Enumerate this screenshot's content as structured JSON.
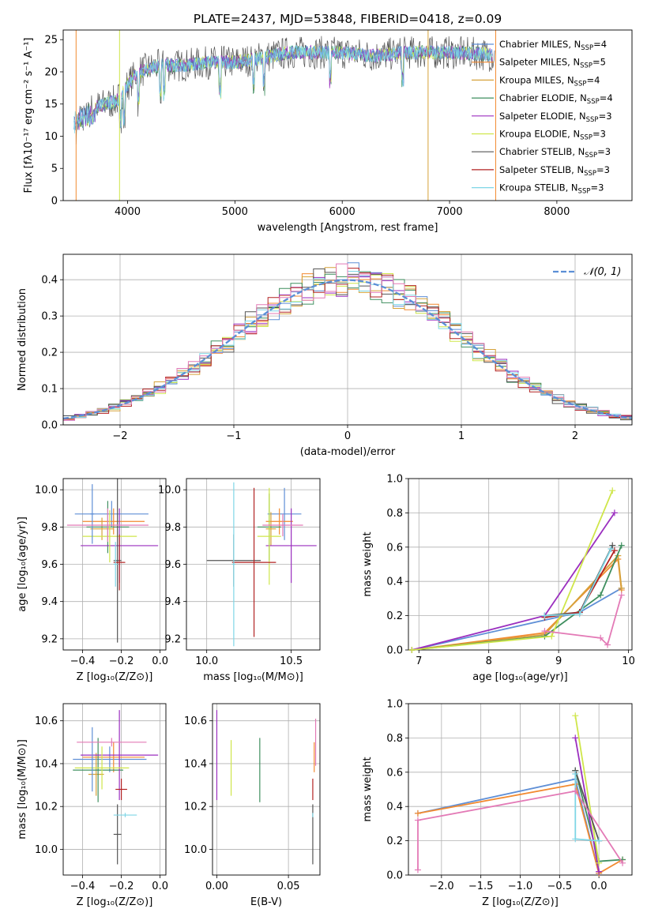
{
  "figure": {
    "title": "PLATE=2437, MJD=53848, FIBERID=0418, z=0.09"
  },
  "colors": {
    "Chabrier MILES": "#5f8fd6",
    "Salpeter MILES": "#f28a30",
    "Kroupa MILES": "#d6a23a",
    "Chabrier ELODIE": "#3f8f5f",
    "Salpeter ELODIE": "#9b2fbf",
    "Kroupa ELODIE": "#cfe64a",
    "Chabrier STELIB": "#555555",
    "Salpeter STELIB": "#b22222",
    "Kroupa STELIB": "#7fd6e6",
    "Pink": "#e37ab6",
    "Gaussian": "#5b8fd6",
    "Grid": "#b0b0b0"
  },
  "chart_data": [
    {
      "id": "spectrum",
      "type": "line",
      "title": "PLATE=2437, MJD=53848, FIBERID=0418, z=0.09",
      "xlabel": "wavelength [Angstrom, rest frame]",
      "ylabel": "Flux [fλ10⁻¹⁷ erg cm⁻² s⁻¹ A⁻¹]",
      "xlim": [
        3400,
        8700
      ],
      "ylim": [
        0,
        26.5
      ],
      "xticks": [
        4000,
        5000,
        6000,
        7000,
        8000
      ],
      "yticks": [
        0,
        5,
        10,
        15,
        20,
        25
      ],
      "grid": false,
      "legend_position": "right",
      "legend": [
        "Chabrier MILES, N_SSP=4",
        "Salpeter MILES, N_SSP=5",
        "Kroupa MILES, N_SSP=4",
        "Chabrier ELODIE, N_SSP=4",
        "Salpeter ELODIE, N_SSP=3",
        "Kroupa ELODIE, N_SSP=3",
        "Chabrier STELIB, N_SSP=3",
        "Salpeter STELIB, N_SSP=3",
        "Kroupa STELIB, N_SSP=3"
      ],
      "continuum": {
        "x": [
          3500,
          3600,
          3700,
          3800,
          3900,
          4000,
          4100,
          4300,
          4500,
          4800,
          5000,
          5200,
          5500,
          5800,
          6000,
          6300,
          6600,
          7000,
          7300,
          7430
        ],
        "y": [
          13,
          14,
          14.5,
          15,
          15.5,
          18,
          20,
          21,
          21,
          21.5,
          21.5,
          22,
          23,
          23,
          23,
          22.5,
          23,
          23,
          22.8,
          22.5
        ]
      }
    },
    {
      "id": "residuals",
      "type": "histogram",
      "xlabel": "(data-model)/error",
      "ylabel": "Normed distribution",
      "xlim": [
        -2.5,
        2.5
      ],
      "ylim": [
        0,
        0.47
      ],
      "xticks": [
        "−2",
        "−1",
        "0",
        "1",
        "2"
      ],
      "yticks": [
        "0.0",
        "0.1",
        "0.2",
        "0.3",
        "0.4"
      ],
      "grid": true,
      "legend": [
        "𝒩(0, 1)"
      ],
      "legend_position": "top-right",
      "bin_width": 0.1
    },
    {
      "id": "age-vs-Z",
      "type": "errorbar",
      "xlabel": "Z [log₁₀(Z/Z⊙)]",
      "ylabel": "age  [log₁₀(age/yr)]",
      "xlim": [
        -0.5,
        0.03
      ],
      "ylim": [
        9.14,
        10.06
      ],
      "xticks": [
        "−0.4",
        "−0.2",
        "0.0"
      ],
      "yticks": [
        "9.2",
        "9.4",
        "9.6",
        "9.8",
        "10.0"
      ],
      "grid": true,
      "points": [
        {
          "c": "Chabrier MILES",
          "x": -0.25,
          "xerr": 0.19,
          "y": 9.87,
          "yerr": 0.07
        },
        {
          "c": "Salpeter MILES",
          "x": -0.24,
          "xerr": 0.16,
          "y": 9.83,
          "yerr": 0.07
        },
        {
          "c": "Kroupa MILES",
          "x": -0.3,
          "xerr": 0.06,
          "y": 9.79,
          "yerr": 0.06
        },
        {
          "c": "Chabrier ELODIE",
          "x": -0.27,
          "xerr": 0.11,
          "y": 9.8,
          "yerr": 0.14
        },
        {
          "c": "Salpeter ELODIE",
          "x": -0.21,
          "xerr": 0.2,
          "y": 9.7,
          "yerr": 0.2
        },
        {
          "c": "Kroupa ELODIE",
          "x": -0.26,
          "xerr": 0.14,
          "y": 9.75,
          "yerr": 0.14
        },
        {
          "c": "Chabrier STELIB",
          "x": -0.22,
          "xerr": 0.02,
          "y": 9.62,
          "yerr": 0.44
        },
        {
          "c": "Salpeter STELIB",
          "x": -0.21,
          "xerr": 0.03,
          "y": 9.61,
          "yerr": 0.15
        },
        {
          "c": "Kroupa STELIB",
          "x": -0.23,
          "xerr": 0.01,
          "y": 9.6,
          "yerr": 0.12
        },
        {
          "c": "Chabrier MILES",
          "x": -0.35,
          "xerr": 0.01,
          "y": 9.87,
          "yerr": 0.16
        },
        {
          "c": "Pink",
          "x": -0.27,
          "xerr": 0.21,
          "y": 9.81,
          "yerr": 0.09
        }
      ]
    },
    {
      "id": "age-vs-mass",
      "type": "errorbar",
      "xlabel": "mass [log₁₀(M/M⊙)]",
      "ylabel": "",
      "xlim": [
        9.88,
        10.67
      ],
      "ylim": [
        9.14,
        10.06
      ],
      "xticks": [
        "10.0",
        "10.5"
      ],
      "yticks": [
        "9.2",
        "9.4",
        "9.6",
        "9.8",
        "10.0"
      ],
      "grid": true,
      "points": [
        {
          "c": "Chabrier MILES",
          "x": 10.46,
          "xerr": 0.1,
          "y": 9.87,
          "yerr": 0.14
        },
        {
          "c": "Salpeter MILES",
          "x": 10.43,
          "xerr": 0.08,
          "y": 9.83,
          "yerr": 0.07
        },
        {
          "c": "Kroupa MILES",
          "x": 10.38,
          "xerr": 0.03,
          "y": 9.79,
          "yerr": 0.09
        },
        {
          "c": "Chabrier ELODIE",
          "x": 10.37,
          "xerr": 0.07,
          "y": 9.8,
          "yerr": 0.18
        },
        {
          "c": "Salpeter ELODIE",
          "x": 10.5,
          "xerr": 0.15,
          "y": 9.7,
          "yerr": 0.2
        },
        {
          "c": "Kroupa ELODIE",
          "x": 10.37,
          "xerr": 0.07,
          "y": 9.75,
          "yerr": 0.26
        },
        {
          "c": "Chabrier STELIB",
          "x": 10.16,
          "xerr": 0.16,
          "y": 9.62,
          "yerr": 0.14
        },
        {
          "c": "Salpeter STELIB",
          "x": 10.28,
          "xerr": 0.13,
          "y": 9.61,
          "yerr": 0.4
        },
        {
          "c": "Kroupa STELIB",
          "x": 10.16,
          "xerr": 0.01,
          "y": 9.6,
          "yerr": 0.44
        },
        {
          "c": "Pink",
          "x": 10.45,
          "xerr": 0.12,
          "y": 9.81,
          "yerr": 0.06
        }
      ]
    },
    {
      "id": "weight-vs-age",
      "type": "line",
      "xlabel": "age  [log₁₀(age/yr)]",
      "ylabel": "mass weight",
      "xlim": [
        6.85,
        10.05
      ],
      "ylim": [
        0,
        1
      ],
      "xticks": [
        "7",
        "8",
        "9",
        "10"
      ],
      "yticks": [
        "0.0",
        "0.2",
        "0.4",
        "0.6",
        "0.8",
        "1.0"
      ],
      "grid": true,
      "series": [
        {
          "c": "Chabrier MILES",
          "x": [
            6.9,
            9.3,
            9.9
          ],
          "y": [
            0.0,
            0.22,
            0.36
          ]
        },
        {
          "c": "Salpeter MILES",
          "x": [
            6.9,
            8.8,
            9.85,
            9.9
          ],
          "y": [
            0.0,
            0.1,
            0.53,
            0.35
          ]
        },
        {
          "c": "Kroupa MILES",
          "x": [
            6.9,
            8.8,
            9.85,
            9.9
          ],
          "y": [
            0.0,
            0.09,
            0.55,
            0.36
          ]
        },
        {
          "c": "Chabrier ELODIE",
          "x": [
            6.9,
            8.8,
            9.6,
            9.9
          ],
          "y": [
            0.0,
            0.08,
            0.32,
            0.61
          ]
        },
        {
          "c": "Salpeter ELODIE",
          "x": [
            6.9,
            8.8,
            9.8
          ],
          "y": [
            0.0,
            0.2,
            0.8
          ]
        },
        {
          "c": "Kroupa ELODIE",
          "x": [
            6.9,
            8.9,
            9.77
          ],
          "y": [
            0.0,
            0.08,
            0.93
          ]
        },
        {
          "c": "Chabrier STELIB",
          "x": [
            8.8,
            9.3,
            9.77
          ],
          "y": [
            0.2,
            0.22,
            0.61
          ]
        },
        {
          "c": "Salpeter STELIB",
          "x": [
            8.8,
            9.3,
            9.8
          ],
          "y": [
            0.19,
            0.22,
            0.58
          ]
        },
        {
          "c": "Kroupa STELIB",
          "x": [
            8.8,
            9.3,
            9.75
          ],
          "y": [
            0.2,
            0.21,
            0.59
          ]
        },
        {
          "c": "Pink",
          "x": [
            8.8,
            9.6,
            9.7,
            9.9
          ],
          "y": [
            0.11,
            0.07,
            0.03,
            0.32
          ]
        }
      ]
    },
    {
      "id": "mass-vs-Z",
      "type": "errorbar",
      "xlabel": "Z [log₁₀(Z/Z⊙)]",
      "ylabel": "mass [log₁₀(M/M⊙)]",
      "xlim": [
        -0.5,
        0.03
      ],
      "ylim": [
        9.88,
        10.68
      ],
      "xticks": [
        "−0.4",
        "−0.2",
        "0.0"
      ],
      "yticks": [
        "10.0",
        "10.2",
        "10.4",
        "10.6"
      ],
      "grid": true,
      "points": [
        {
          "c": "Chabrier MILES",
          "x": -0.26,
          "xerr": 0.19,
          "y": 10.42,
          "yerr": 0.06
        },
        {
          "c": "Salpeter MILES",
          "x": -0.24,
          "xerr": 0.16,
          "y": 10.43,
          "yerr": 0.07
        },
        {
          "c": "Kroupa MILES",
          "x": -0.33,
          "xerr": 0.04,
          "y": 10.35,
          "yerr": 0.1
        },
        {
          "c": "Chabrier ELODIE",
          "x": -0.32,
          "xerr": 0.13,
          "y": 10.37,
          "yerr": 0.15
        },
        {
          "c": "Salpeter ELODIE",
          "x": -0.21,
          "xerr": 0.2,
          "y": 10.44,
          "yerr": 0.21
        },
        {
          "c": "Kroupa ELODIE",
          "x": -0.3,
          "xerr": 0.14,
          "y": 10.38,
          "yerr": 0.1
        },
        {
          "c": "Chabrier STELIB",
          "x": -0.22,
          "xerr": 0.02,
          "y": 10.07,
          "yerr": 0.14
        },
        {
          "c": "Salpeter STELIB",
          "x": -0.2,
          "xerr": 0.03,
          "y": 10.28,
          "yerr": 0.05
        },
        {
          "c": "Kroupa STELIB",
          "x": -0.18,
          "xerr": 0.06,
          "y": 10.16,
          "yerr": 0.01
        },
        {
          "c": "Chabrier MILES",
          "x": -0.35,
          "xerr": 0.01,
          "y": 10.42,
          "yerr": 0.15
        },
        {
          "c": "Pink",
          "x": -0.25,
          "xerr": 0.18,
          "y": 10.5,
          "yerr": 0.02
        }
      ]
    },
    {
      "id": "mass-vs-EBV",
      "type": "errorbar",
      "xlabel": "E(B-V)",
      "ylabel": "",
      "xlim": [
        -0.003,
        0.072
      ],
      "ylim": [
        9.88,
        10.68
      ],
      "xticks": [
        "0.00",
        "0.05"
      ],
      "yticks": [
        "10.0",
        "10.2",
        "10.4",
        "10.6"
      ],
      "grid": true,
      "points": [
        {
          "c": "Salpeter ELODIE",
          "x": 0.0,
          "xerr": 0,
          "y": 10.44,
          "yerr": 0.21
        },
        {
          "c": "Kroupa ELODIE",
          "x": 0.01,
          "xerr": 0,
          "y": 10.38,
          "yerr": 0.13
        },
        {
          "c": "Chabrier ELODIE",
          "x": 0.03,
          "xerr": 0,
          "y": 10.37,
          "yerr": 0.15
        },
        {
          "c": "Salpeter MILES",
          "x": 0.068,
          "xerr": 0,
          "y": 10.43,
          "yerr": 0.07
        },
        {
          "c": "Pink",
          "x": 0.069,
          "xerr": 0,
          "y": 10.5,
          "yerr": 0.11
        },
        {
          "c": "Chabrier STELIB",
          "x": 0.067,
          "xerr": 0,
          "y": 10.07,
          "yerr": 0.14
        },
        {
          "c": "Salpeter STELIB",
          "x": 0.067,
          "xerr": 0,
          "y": 10.28,
          "yerr": 0.05
        },
        {
          "c": "Kroupa STELIB",
          "x": 0.067,
          "xerr": 0,
          "y": 10.16,
          "yerr": 0.01
        }
      ]
    },
    {
      "id": "weight-vs-Z",
      "type": "line",
      "xlabel": "Z [log₁₀(Z/Z⊙)]",
      "ylabel": "mass weight",
      "xlim": [
        -2.42,
        0.42
      ],
      "ylim": [
        0,
        1
      ],
      "xticks": [
        "−2.0",
        "−1.5",
        "−1.0",
        "−0.5",
        "0.0"
      ],
      "yticks": [
        "0.0",
        "0.2",
        "0.4",
        "0.6",
        "0.8",
        "1.0"
      ],
      "grid": true,
      "series": [
        {
          "c": "Chabrier MILES",
          "x": [
            -2.3,
            -0.3,
            0.0
          ],
          "y": [
            0.36,
            0.56,
            0.01
          ]
        },
        {
          "c": "Salpeter MILES",
          "x": [
            -2.3,
            -0.3,
            0.0,
            0.3
          ],
          "y": [
            0.36,
            0.53,
            0.01,
            0.09
          ]
        },
        {
          "c": "Chabrier ELODIE",
          "x": [
            -0.3,
            0.0,
            0.3
          ],
          "y": [
            0.61,
            0.08,
            0.09
          ]
        },
        {
          "c": "Salpeter ELODIE",
          "x": [
            -0.3,
            0.0
          ],
          "y": [
            0.8,
            0.02
          ]
        },
        {
          "c": "Kroupa ELODIE",
          "x": [
            -0.3,
            0.0
          ],
          "y": [
            0.93,
            0.07
          ]
        },
        {
          "c": "Chabrier STELIB",
          "x": [
            -0.3,
            0.0
          ],
          "y": [
            0.61,
            0.2
          ]
        },
        {
          "c": "Kroupa STELIB",
          "x": [
            -0.3,
            -0.3,
            0.0
          ],
          "y": [
            0.59,
            0.21,
            0.2
          ]
        },
        {
          "c": "Pink",
          "x": [
            -2.3,
            -2.3,
            -0.3,
            0.3
          ],
          "y": [
            0.03,
            0.32,
            0.49,
            0.07
          ]
        }
      ]
    }
  ]
}
